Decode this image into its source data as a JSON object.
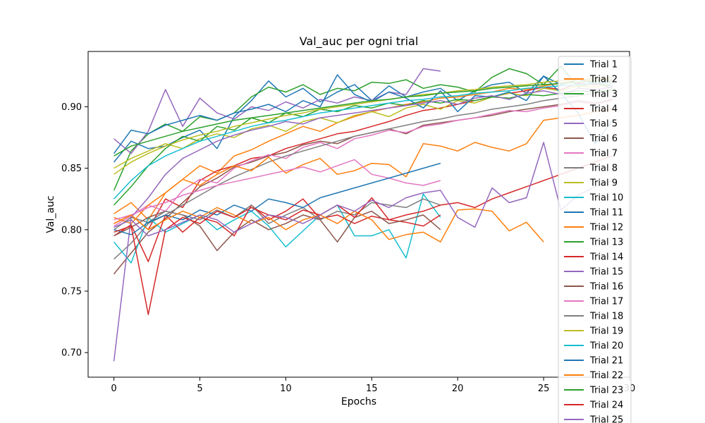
{
  "chart_data": {
    "type": "line",
    "title": "Val_auc per ogni trial",
    "xlabel": "Epochs",
    "ylabel": "Val_auc",
    "xlim": [
      -1.5,
      30
    ],
    "ylim": [
      0.68,
      0.945
    ],
    "x_ticks": [
      0,
      5,
      10,
      15,
      20,
      25,
      30
    ],
    "y_ticks": [
      0.7,
      0.75,
      0.8,
      0.85,
      0.9
    ],
    "legend_position": "top-right",
    "grid": false,
    "series": [
      {
        "name": "Trial 1",
        "color": "#1f77b4",
        "values": [
          0.855,
          0.872,
          0.866,
          0.868,
          0.875,
          0.881,
          0.866,
          0.892,
          0.905,
          0.921,
          0.908,
          0.915,
          0.904,
          0.912,
          0.918,
          0.905,
          0.917,
          0.908,
          0.912,
          0.915,
          0.905,
          0.913,
          0.918,
          0.92,
          0.911,
          0.925,
          0.918,
          0.922,
          0.919,
          0.917
        ]
      },
      {
        "name": "Trial 2",
        "color": "#ff7f0e",
        "values": [
          0.813,
          0.822,
          0.808,
          0.83,
          0.841,
          0.852,
          0.846,
          0.86,
          0.865,
          0.872,
          0.878,
          0.884,
          0.88,
          0.887,
          0.892,
          0.896,
          0.899,
          0.902,
          0.904,
          0.907,
          0.908,
          0.91,
          0.912,
          0.915,
          0.914,
          0.917,
          0.919,
          0.922,
          0.921,
          0.924
        ]
      },
      {
        "name": "Trial 3",
        "color": "#2ca02c",
        "values": [
          0.832,
          0.864,
          0.878,
          0.886,
          0.88,
          0.892,
          0.889,
          0.895,
          0.908,
          0.916,
          0.912,
          0.918,
          0.91,
          0.915,
          0.913,
          0.92,
          0.919,
          0.922,
          0.915,
          0.918,
          0.916,
          0.912,
          0.924,
          0.931,
          0.927,
          0.918,
          0.933,
          0.916,
          0.92,
          0.915
        ]
      },
      {
        "name": "Trial 4",
        "color": "#d62728",
        "values": [
          0.805,
          0.812,
          0.8,
          0.825,
          0.818,
          0.84,
          0.848,
          0.852,
          0.858,
          0.86,
          0.866,
          0.87,
          0.874,
          0.878,
          0.88,
          0.884,
          0.888,
          0.893,
          0.897,
          0.899,
          0.902,
          0.905,
          0.908,
          0.911,
          0.913,
          0.916,
          0.914,
          0.919,
          0.918,
          0.921
        ]
      },
      {
        "name": "Trial 5",
        "color": "#9467bd",
        "values": [
          0.874,
          0.862,
          0.88,
          0.914,
          0.884,
          0.907,
          0.895,
          0.89,
          0.9,
          0.897,
          0.904,
          0.899,
          0.906,
          0.903,
          0.908,
          0.905,
          0.912,
          0.91,
          0.931,
          0.929
        ]
      },
      {
        "name": "Trial 6",
        "color": "#8c564b",
        "values": [
          0.764,
          0.781,
          0.798,
          0.809,
          0.822,
          0.835,
          0.842,
          0.851,
          0.855,
          0.86,
          0.863,
          0.869,
          0.872,
          0.87,
          0.876,
          0.879,
          0.882,
          0.878,
          0.885,
          0.887,
          0.889,
          0.891,
          0.893,
          0.896,
          0.898,
          0.9,
          0.902,
          0.905,
          0.903,
          0.906
        ]
      },
      {
        "name": "Trial 7",
        "color": "#e377c2",
        "values": [
          0.803,
          0.811,
          0.82,
          0.815,
          0.832,
          0.841,
          0.838,
          0.85,
          0.856,
          0.861,
          0.858,
          0.867,
          0.871,
          0.866,
          0.874,
          0.877,
          0.881,
          0.879,
          0.884,
          0.886,
          0.889,
          0.891,
          0.894,
          0.897,
          0.896,
          0.899,
          0.901,
          0.904,
          0.902,
          0.905
        ]
      },
      {
        "name": "Trial 8",
        "color": "#7f7f7f",
        "values": [
          0.776,
          0.789,
          0.805,
          0.812,
          0.82,
          0.828,
          0.836,
          0.843,
          0.849,
          0.855,
          0.86,
          0.864,
          0.868,
          0.872,
          0.876,
          0.879,
          0.882,
          0.885,
          0.888,
          0.89,
          0.893,
          0.895,
          0.898,
          0.9,
          0.902,
          0.905,
          0.907,
          0.909,
          0.911,
          0.913
        ]
      },
      {
        "name": "Trial 9",
        "color": "#bcbd22",
        "values": [
          0.85,
          0.858,
          0.864,
          0.87,
          0.866,
          0.874,
          0.878,
          0.875,
          0.882,
          0.885,
          0.88,
          0.888,
          0.891,
          0.887,
          0.893,
          0.896,
          0.892,
          0.899,
          0.902,
          0.898,
          0.905,
          0.903,
          0.908,
          0.911,
          0.909,
          0.915,
          0.913,
          0.917,
          0.916,
          0.919
        ]
      },
      {
        "name": "Trial 10",
        "color": "#17becf",
        "values": [
          0.79,
          0.773,
          0.81,
          0.798,
          0.805,
          0.812,
          0.8,
          0.808,
          0.815,
          0.803,
          0.786,
          0.799,
          0.812,
          0.82,
          0.795,
          0.795,
          0.8,
          0.777,
          0.829,
          0.81
        ]
      },
      {
        "name": "Trial 11",
        "color": "#1f77b4",
        "values": [
          0.862,
          0.881,
          0.878,
          0.885,
          0.889,
          0.893,
          0.889,
          0.895,
          0.898,
          0.902,
          0.896,
          0.905,
          0.9,
          0.926,
          0.91,
          0.904,
          0.912,
          0.907,
          0.899,
          0.913,
          0.896,
          0.909,
          0.908,
          0.912,
          0.905,
          0.925,
          0.911,
          0.895,
          0.87,
          0.889
        ]
      },
      {
        "name": "Trial 12",
        "color": "#ff7f0e",
        "values": [
          0.81,
          0.805,
          0.82,
          0.83,
          0.841,
          0.836,
          0.845,
          0.852,
          0.848,
          0.859,
          0.846,
          0.853,
          0.858,
          0.845,
          0.848,
          0.854,
          0.853,
          0.843,
          0.87,
          0.868,
          0.864,
          0.871,
          0.867,
          0.864,
          0.87,
          0.889,
          0.891,
          0.893,
          0.896,
          0.898
        ]
      },
      {
        "name": "Trial 13",
        "color": "#2ca02c",
        "values": [
          0.82,
          0.835,
          0.852,
          0.866,
          0.876,
          0.872,
          0.884,
          0.881,
          0.891,
          0.887,
          0.895,
          0.892,
          0.898,
          0.896,
          0.901,
          0.899,
          0.903,
          0.901,
          0.905,
          0.903,
          0.906,
          0.905,
          0.908,
          0.907,
          0.91,
          0.909,
          0.911,
          0.913,
          0.912,
          0.914
        ]
      },
      {
        "name": "Trial 14",
        "color": "#d62728",
        "values": [
          0.795,
          0.804,
          0.774,
          0.812,
          0.798,
          0.81,
          0.806,
          0.795,
          0.82,
          0.808,
          0.815,
          0.825,
          0.809,
          0.812,
          0.805,
          0.811,
          0.808,
          0.806,
          0.803,
          0.812
        ]
      },
      {
        "name": "Trial 15",
        "color": "#9467bd",
        "values": [
          0.693,
          0.81,
          0.826,
          0.845,
          0.858,
          0.865,
          0.872,
          0.877,
          0.881,
          0.884,
          0.888,
          0.886,
          0.891,
          0.893,
          0.895,
          0.897,
          0.899,
          0.901,
          0.903,
          0.905,
          0.902,
          0.907,
          0.909,
          0.906,
          0.911,
          0.913,
          0.91,
          0.915,
          0.914,
          0.916
        ]
      },
      {
        "name": "Trial 16",
        "color": "#8c564b",
        "values": [
          0.795,
          0.802,
          0.81,
          0.815,
          0.812,
          0.803,
          0.783,
          0.798,
          0.808,
          0.8,
          0.805,
          0.812,
          0.808,
          0.79,
          0.81,
          0.815,
          0.805,
          0.808,
          0.812,
          0.8
        ]
      },
      {
        "name": "Trial 17",
        "color": "#e377c2",
        "values": [
          0.808,
          0.812,
          0.818,
          0.822,
          0.828,
          0.832,
          0.836,
          0.839,
          0.842,
          0.845,
          0.848,
          0.851,
          0.847,
          0.852,
          0.857,
          0.845,
          0.842,
          0.838,
          0.836,
          0.84
        ]
      },
      {
        "name": "Trial 18",
        "color": "#7f7f7f",
        "values": [
          0.8,
          0.81,
          0.806,
          0.815,
          0.812,
          0.808,
          0.816,
          0.81,
          0.82,
          0.805,
          0.812,
          0.818,
          0.808,
          0.815,
          0.812,
          0.822,
          0.82,
          0.818,
          0.825,
          0.82
        ]
      },
      {
        "name": "Trial 19",
        "color": "#bcbd22",
        "values": [
          0.845,
          0.855,
          0.862,
          0.868,
          0.873,
          0.877,
          0.88,
          0.884,
          0.887,
          0.89,
          0.893,
          0.895,
          0.898,
          0.9,
          0.902,
          0.904,
          0.906,
          0.908,
          0.91,
          0.911,
          0.913,
          0.914,
          0.916,
          0.917,
          0.918,
          0.92,
          0.921,
          0.922,
          0.923,
          0.924
        ]
      },
      {
        "name": "Trial 20",
        "color": "#17becf",
        "values": [
          0.825,
          0.84,
          0.852,
          0.86,
          0.866,
          0.872,
          0.876,
          0.88,
          0.884,
          0.887,
          0.889,
          0.892,
          0.895,
          0.897,
          0.899,
          0.901,
          0.903,
          0.905,
          0.906,
          0.908,
          0.909,
          0.911,
          0.912,
          0.913,
          0.915,
          0.916,
          0.917,
          0.918,
          0.919,
          0.92
        ]
      },
      {
        "name": "Trial 21",
        "color": "#1f77b4",
        "values": [
          0.8,
          0.796,
          0.806,
          0.812,
          0.808,
          0.816,
          0.812,
          0.82,
          0.815,
          0.825,
          0.822,
          0.818,
          0.826,
          0.83,
          0.834,
          0.838,
          0.842,
          0.846,
          0.85,
          0.854
        ]
      },
      {
        "name": "Trial 22",
        "color": "#ff7f0e",
        "values": [
          0.805,
          0.812,
          0.8,
          0.808,
          0.815,
          0.81,
          0.818,
          0.812,
          0.805,
          0.81,
          0.8,
          0.808,
          0.812,
          0.805,
          0.815,
          0.808,
          0.792,
          0.796,
          0.798,
          0.79,
          0.816,
          0.817,
          0.815,
          0.799,
          0.806,
          0.79
        ]
      },
      {
        "name": "Trial 23",
        "color": "#2ca02c",
        "values": [
          0.86,
          0.868,
          0.872,
          0.876,
          0.88,
          0.883,
          0.886,
          0.889,
          0.891,
          0.893,
          0.895,
          0.897,
          0.899,
          0.901,
          0.903,
          0.905,
          0.906,
          0.908,
          0.909,
          0.911,
          0.912,
          0.913,
          0.915,
          0.916,
          0.917,
          0.918,
          0.919,
          0.92,
          0.921,
          0.922
        ]
      },
      {
        "name": "Trial 24",
        "color": "#d62728",
        "values": [
          0.798,
          0.803,
          0.731,
          0.8,
          0.81,
          0.805,
          0.815,
          0.81,
          0.818,
          0.812,
          0.808,
          0.816,
          0.812,
          0.82,
          0.81,
          0.826,
          0.808,
          0.812,
          0.815,
          0.82,
          0.822,
          0.818,
          0.825,
          0.83,
          0.835,
          0.84,
          0.845,
          0.85,
          0.855,
          0.86
        ]
      },
      {
        "name": "Trial 25",
        "color": "#9467bd",
        "values": [
          0.802,
          0.808,
          0.795,
          0.8,
          0.806,
          0.812,
          0.808,
          0.798,
          0.805,
          0.812,
          0.81,
          0.805,
          0.812,
          0.82,
          0.815,
          0.824,
          0.818,
          0.826,
          0.83,
          0.832,
          0.81,
          0.802,
          0.834,
          0.822,
          0.826,
          0.871,
          0.816,
          0.828,
          0.835,
          0.84
        ]
      }
    ]
  }
}
